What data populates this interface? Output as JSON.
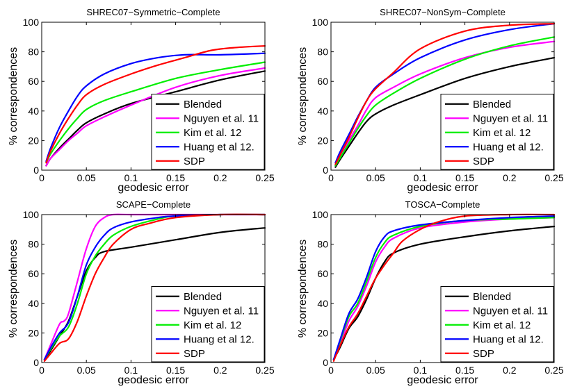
{
  "chart_data": [
    {
      "type": "line",
      "title": "SHREC07−Symmetric−Complete",
      "xlabel": "geodesic error",
      "ylabel": "% correspondences",
      "xlim": [
        0,
        0.25
      ],
      "ylim": [
        0,
        100
      ],
      "xticks": [
        "0",
        "0.05",
        "0.1",
        "0.15",
        "0.2",
        "0.25"
      ],
      "yticks": [
        "0",
        "20",
        "40",
        "60",
        "80",
        "100"
      ],
      "grid": false,
      "legend": "bottom-right",
      "series": [
        {
          "name": "Blended",
          "color": "#000000",
          "x": [
            0.005,
            0.01,
            0.02,
            0.03,
            0.04,
            0.05,
            0.07,
            0.1,
            0.15,
            0.2,
            0.25
          ],
          "y": [
            3,
            8,
            15,
            21,
            27,
            32,
            38,
            45,
            53,
            61,
            67
          ]
        },
        {
          "name": "Nguyen et al. 11",
          "color": "#ff00ff",
          "x": [
            0.005,
            0.01,
            0.02,
            0.03,
            0.04,
            0.05,
            0.07,
            0.1,
            0.15,
            0.2,
            0.25
          ],
          "y": [
            3,
            8,
            14,
            20,
            25,
            30,
            36,
            44,
            56,
            64,
            69
          ]
        },
        {
          "name": "Kim et al. 12",
          "color": "#00ee00",
          "x": [
            0.005,
            0.01,
            0.02,
            0.03,
            0.04,
            0.05,
            0.07,
            0.1,
            0.15,
            0.2,
            0.25
          ],
          "y": [
            5,
            11,
            20,
            28,
            35,
            41,
            47,
            53,
            62,
            68,
            73
          ]
        },
        {
          "name": "Huang et al 12.",
          "color": "#0000ff",
          "x": [
            0.005,
            0.01,
            0.02,
            0.03,
            0.04,
            0.05,
            0.07,
            0.1,
            0.13,
            0.16,
            0.2,
            0.25
          ],
          "y": [
            6,
            15,
            29,
            40,
            50,
            57,
            65,
            72,
            76,
            78,
            78,
            79
          ]
        },
        {
          "name": "SDP",
          "color": "#ff0000",
          "x": [
            0.005,
            0.01,
            0.02,
            0.03,
            0.04,
            0.05,
            0.07,
            0.1,
            0.13,
            0.16,
            0.19,
            0.22,
            0.25
          ],
          "y": [
            5,
            13,
            25,
            35,
            44,
            51,
            58,
            65,
            71,
            76,
            81,
            83,
            84
          ]
        }
      ]
    },
    {
      "type": "line",
      "title": "SHREC07−NonSym−Complete",
      "xlabel": "geodesic error",
      "ylabel": "% correspondences",
      "xlim": [
        0,
        0.25
      ],
      "ylim": [
        0,
        100
      ],
      "xticks": [
        "0",
        "0.05",
        "0.1",
        "0.15",
        "0.2",
        "0.25"
      ],
      "yticks": [
        "0",
        "20",
        "40",
        "60",
        "80",
        "100"
      ],
      "grid": false,
      "legend": "bottom-right",
      "series": [
        {
          "name": "Blended",
          "color": "#000000",
          "x": [
            0.005,
            0.01,
            0.02,
            0.03,
            0.04,
            0.05,
            0.07,
            0.1,
            0.15,
            0.2,
            0.25
          ],
          "y": [
            2,
            7,
            16,
            25,
            33,
            38,
            44,
            51,
            62,
            70,
            76
          ]
        },
        {
          "name": "Nguyen et al. 11",
          "color": "#ff00ff",
          "x": [
            0.005,
            0.01,
            0.02,
            0.03,
            0.04,
            0.05,
            0.07,
            0.1,
            0.15,
            0.2,
            0.25
          ],
          "y": [
            3,
            9,
            20,
            30,
            41,
            49,
            56,
            65,
            76,
            83,
            87
          ]
        },
        {
          "name": "Kim et al. 12",
          "color": "#00ee00",
          "x": [
            0.005,
            0.01,
            0.02,
            0.03,
            0.04,
            0.05,
            0.07,
            0.1,
            0.15,
            0.2,
            0.25
          ],
          "y": [
            3,
            8,
            18,
            28,
            37,
            44,
            52,
            62,
            75,
            84,
            90
          ]
        },
        {
          "name": "Huang et al 12.",
          "color": "#0000ff",
          "x": [
            0.005,
            0.01,
            0.02,
            0.03,
            0.04,
            0.05,
            0.07,
            0.1,
            0.15,
            0.2,
            0.25
          ],
          "y": [
            5,
            12,
            24,
            36,
            47,
            56,
            65,
            76,
            88,
            95,
            99
          ]
        },
        {
          "name": "SDP",
          "color": "#ff0000",
          "x": [
            0.005,
            0.01,
            0.02,
            0.03,
            0.04,
            0.05,
            0.07,
            0.1,
            0.15,
            0.2,
            0.25
          ],
          "y": [
            4,
            10,
            22,
            35,
            47,
            55,
            66,
            82,
            94,
            98,
            99
          ]
        }
      ]
    },
    {
      "type": "line",
      "title": "SCAPE−Complete",
      "xlabel": "geodesic error",
      "ylabel": "% correspondences",
      "xlim": [
        0,
        0.25
      ],
      "ylim": [
        0,
        100
      ],
      "xticks": [
        "0",
        "0.05",
        "0.1",
        "0.15",
        "0.2",
        "0.25"
      ],
      "yticks": [
        "0",
        "20",
        "40",
        "60",
        "80",
        "100"
      ],
      "grid": false,
      "legend": "bottom-right",
      "series": [
        {
          "name": "Blended",
          "color": "#000000",
          "x": [
            0.003,
            0.01,
            0.02,
            0.03,
            0.04,
            0.05,
            0.06,
            0.07,
            0.1,
            0.15,
            0.2,
            0.25
          ],
          "y": [
            2,
            8,
            18,
            28,
            45,
            62,
            71,
            75,
            78,
            83,
            88,
            91
          ]
        },
        {
          "name": "Nguyen et al. 11",
          "color": "#ff00ff",
          "x": [
            0.003,
            0.01,
            0.02,
            0.025,
            0.03,
            0.04,
            0.05,
            0.06,
            0.07,
            0.08,
            0.1,
            0.15,
            0.25
          ],
          "y": [
            2,
            12,
            26,
            28,
            33,
            55,
            77,
            92,
            98,
            100,
            100,
            100,
            100
          ]
        },
        {
          "name": "Kim et al. 12",
          "color": "#00ee00",
          "x": [
            0.003,
            0.01,
            0.02,
            0.03,
            0.04,
            0.05,
            0.06,
            0.07,
            0.08,
            0.1,
            0.13,
            0.15,
            0.2,
            0.25
          ],
          "y": [
            2,
            9,
            18,
            24,
            40,
            60,
            72,
            80,
            86,
            92,
            97,
            99,
            100,
            100
          ]
        },
        {
          "name": "Huang et al 12.",
          "color": "#0000ff",
          "x": [
            0.003,
            0.01,
            0.02,
            0.03,
            0.04,
            0.05,
            0.06,
            0.07,
            0.08,
            0.1,
            0.13,
            0.15,
            0.2,
            0.25
          ],
          "y": [
            2,
            10,
            20,
            27,
            45,
            66,
            78,
            86,
            91,
            95,
            98,
            99,
            100,
            100
          ]
        },
        {
          "name": "SDP",
          "color": "#ff0000",
          "x": [
            0.003,
            0.01,
            0.02,
            0.03,
            0.04,
            0.05,
            0.06,
            0.07,
            0.08,
            0.1,
            0.12,
            0.15,
            0.2,
            0.25
          ],
          "y": [
            1,
            6,
            13,
            16,
            28,
            45,
            60,
            71,
            80,
            90,
            94,
            98,
            100,
            100
          ]
        }
      ]
    },
    {
      "type": "line",
      "title": "TOSCA−Complete",
      "xlabel": "geodesic error",
      "ylabel": "% correspondences",
      "xlim": [
        0,
        0.25
      ],
      "ylim": [
        0,
        100
      ],
      "xticks": [
        "0",
        "0.05",
        "0.1",
        "0.15",
        "0.2",
        "0.25"
      ],
      "yticks": [
        "0",
        "20",
        "40",
        "60",
        "80",
        "100"
      ],
      "grid": false,
      "legend": "bottom-right",
      "series": [
        {
          "name": "Blended",
          "color": "#000000",
          "x": [
            0.003,
            0.01,
            0.02,
            0.03,
            0.04,
            0.05,
            0.06,
            0.07,
            0.1,
            0.15,
            0.2,
            0.25
          ],
          "y": [
            2,
            10,
            23,
            31,
            43,
            57,
            68,
            74,
            80,
            85,
            89,
            92
          ]
        },
        {
          "name": "Nguyen et al. 11",
          "color": "#ff00ff",
          "x": [
            0.003,
            0.01,
            0.02,
            0.03,
            0.04,
            0.05,
            0.06,
            0.07,
            0.1,
            0.15,
            0.2,
            0.25
          ],
          "y": [
            2,
            12,
            28,
            38,
            52,
            68,
            78,
            84,
            91,
            95,
            97,
            98
          ]
        },
        {
          "name": "Kim et al. 12",
          "color": "#00ee00",
          "x": [
            0.003,
            0.01,
            0.02,
            0.03,
            0.04,
            0.05,
            0.06,
            0.07,
            0.1,
            0.15,
            0.2,
            0.25
          ],
          "y": [
            2,
            14,
            31,
            40,
            55,
            71,
            81,
            86,
            92,
            96,
            97,
            98
          ]
        },
        {
          "name": "Huang et al 12.",
          "color": "#0000ff",
          "x": [
            0.003,
            0.01,
            0.02,
            0.03,
            0.04,
            0.05,
            0.06,
            0.07,
            0.1,
            0.15,
            0.2,
            0.25
          ],
          "y": [
            2,
            15,
            33,
            43,
            58,
            75,
            85,
            89,
            93,
            96,
            98,
            99
          ]
        },
        {
          "name": "SDP",
          "color": "#ff0000",
          "x": [
            0.003,
            0.01,
            0.02,
            0.03,
            0.04,
            0.05,
            0.06,
            0.07,
            0.08,
            0.1,
            0.12,
            0.15,
            0.2,
            0.25
          ],
          "y": [
            1,
            11,
            24,
            33,
            45,
            57,
            66,
            74,
            82,
            90,
            95,
            99,
            100,
            100
          ]
        }
      ]
    }
  ]
}
